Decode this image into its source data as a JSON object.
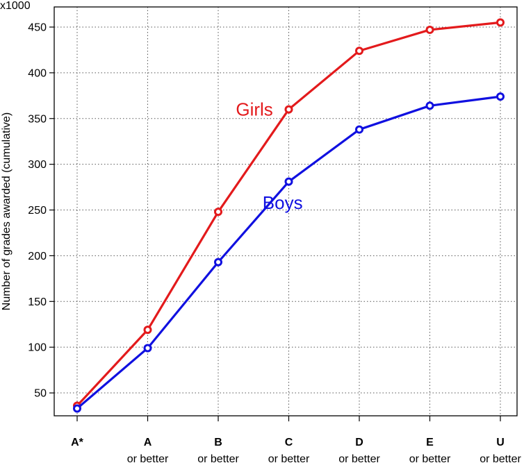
{
  "chart_data": {
    "type": "line",
    "ylabel": "Number of grades awarded (cumulative)",
    "y_multiplier": "x1000",
    "ylim": [
      25,
      472
    ],
    "yticks": [
      50,
      100,
      150,
      200,
      250,
      300,
      350,
      400,
      450
    ],
    "grid": true,
    "categories": [
      {
        "main": "A*",
        "sub": ""
      },
      {
        "main": "A",
        "sub": "or better"
      },
      {
        "main": "B",
        "sub": "or better"
      },
      {
        "main": "C",
        "sub": "or better"
      },
      {
        "main": "D",
        "sub": "or better"
      },
      {
        "main": "E",
        "sub": "or better"
      },
      {
        "main": "U",
        "sub": "or better"
      }
    ],
    "series": [
      {
        "name": "Girls",
        "color": "#e31a1c",
        "values": [
          36,
          119,
          248,
          360,
          424,
          447,
          455
        ],
        "label_at": [
          2.6,
          360
        ]
      },
      {
        "name": "Boys",
        "color": "#1010e0",
        "values": [
          33,
          99,
          193,
          281,
          338,
          364,
          374
        ],
        "label_at": [
          3.0,
          258
        ]
      }
    ]
  }
}
